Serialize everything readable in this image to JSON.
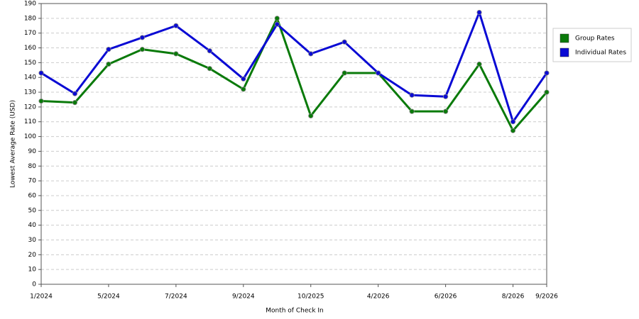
{
  "chart_data": {
    "type": "line",
    "x_label": "Month of Check In",
    "y_label": "Lowest Average Rate (USD)",
    "categories": [
      "1/2024",
      null,
      "5/2024",
      null,
      "7/2024",
      null,
      "9/2024",
      null,
      "10/2025",
      null,
      "4/2026",
      null,
      "6/2026",
      null,
      "8/2026",
      "9/2026"
    ],
    "series": [
      {
        "name": "Group Rates",
        "color": "#0a7a0a",
        "values": [
          124,
          123,
          149,
          159,
          156,
          146,
          132,
          180,
          114,
          143,
          143,
          117,
          117,
          149,
          104,
          130
        ]
      },
      {
        "name": "Individual Rates",
        "color": "#0a0ad4",
        "values": [
          143,
          129,
          159,
          167,
          175,
          158,
          139,
          176,
          156,
          164,
          143,
          128,
          127,
          184,
          110,
          143
        ]
      }
    ],
    "ylim": [
      0,
      190
    ],
    "yticks": [
      0,
      10,
      20,
      30,
      40,
      50,
      60,
      70,
      80,
      90,
      100,
      110,
      120,
      130,
      140,
      150,
      160,
      170,
      180,
      190
    ],
    "grid": true
  }
}
